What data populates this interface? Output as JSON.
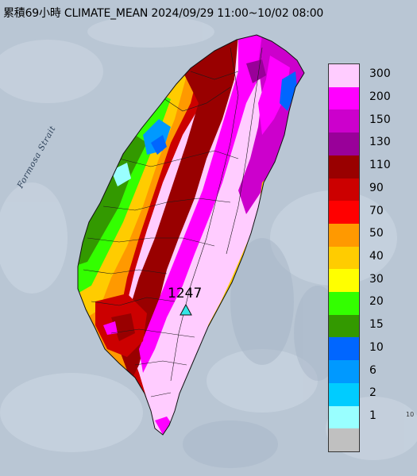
{
  "title": "累積69小時 CLIMATE_MEAN 2024/09/29 11:00~10/02 08:00",
  "strait_label": "Formosa Strait",
  "max_value": "1247",
  "edge_number": "10",
  "legend": [
    {
      "label": "300",
      "color": "#ffccff"
    },
    {
      "label": "200",
      "color": "#ff00ff"
    },
    {
      "label": "150",
      "color": "#cc00cc"
    },
    {
      "label": "130",
      "color": "#990099"
    },
    {
      "label": "110",
      "color": "#990000"
    },
    {
      "label": "90",
      "color": "#cc0000"
    },
    {
      "label": "70",
      "color": "#ff0000"
    },
    {
      "label": "50",
      "color": "#ff9900"
    },
    {
      "label": "40",
      "color": "#ffcc00"
    },
    {
      "label": "30",
      "color": "#ffff00"
    },
    {
      "label": "20",
      "color": "#33ff00"
    },
    {
      "label": "15",
      "color": "#339900"
    },
    {
      "label": "10",
      "color": "#0066ff"
    },
    {
      "label": "6",
      "color": "#0099ff"
    },
    {
      "label": "2",
      "color": "#00ccff"
    },
    {
      "label": "1",
      "color": "#99ffff"
    },
    {
      "label": "",
      "color": "#c0c0c0"
    }
  ],
  "colors": {
    "sea": "#b9c6d4",
    "land_outline": "#111111",
    "marker_fill": "#33e6e6"
  },
  "icons": {
    "max_marker": "triangle-icon"
  }
}
